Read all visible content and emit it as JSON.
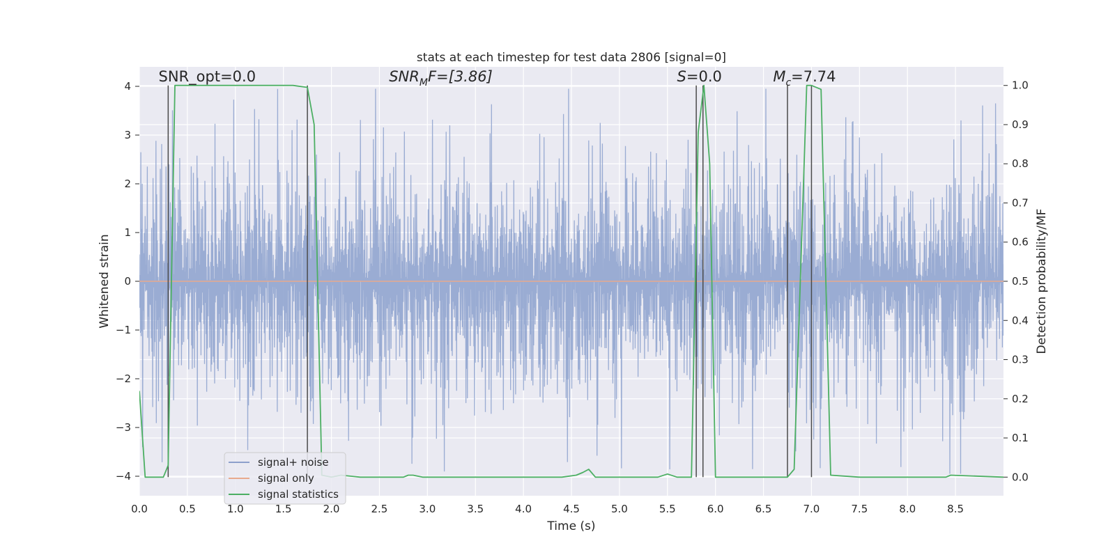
{
  "chart_data": {
    "type": "line",
    "title": "stats at each timestep for test data 2806 [signal=0]",
    "xlabel": "Time (s)",
    "ylabel": "Whitened strain",
    "y2label": "Detection probability/MF",
    "xlim": [
      0.0,
      9.0
    ],
    "ylim": [
      -4.4,
      4.4
    ],
    "y2lim": [
      -0.0475,
      1.0475
    ],
    "xticks": [
      "0.0",
      "0.5",
      "1.0",
      "1.5",
      "2.0",
      "2.5",
      "3.0",
      "3.5",
      "4.0",
      "4.5",
      "5.0",
      "5.5",
      "6.0",
      "6.5",
      "7.0",
      "7.5",
      "8.0",
      "8.5"
    ],
    "yticks": [
      "−4",
      "−3",
      "−2",
      "−1",
      "0",
      "1",
      "2",
      "3",
      "4"
    ],
    "y2ticks": [
      "0.0",
      "0.1",
      "0.2",
      "0.3",
      "0.4",
      "0.5",
      "0.6",
      "0.7",
      "0.8",
      "0.9",
      "1.0"
    ],
    "annotations": {
      "snr_opt": {
        "text": "SNR_opt=0.0",
        "x": 0.2,
        "y": 4.1
      },
      "snr_mf": {
        "prefix": "SNR",
        "sub": "M",
        "suffix": "F=[3.86]",
        "x": 2.6,
        "y": 4.1
      },
      "s": {
        "prefix": "S",
        "suffix": "=0.0",
        "x": 5.6,
        "y": 4.1
      },
      "mc": {
        "prefix": "M",
        "sub": "c",
        "suffix": "=7.74",
        "x": 6.6,
        "y": 4.1
      }
    },
    "legend": {
      "placement": "lower-left",
      "entries": [
        {
          "label": "signal+ noise",
          "color": "#8da0cb"
        },
        {
          "label": "signal only",
          "color": "#e8a98d"
        },
        {
          "label": "signal statistics",
          "color": "#4caf63"
        }
      ]
    },
    "series": [
      {
        "name": "signal+ noise",
        "axis": "left",
        "color": "#91a5cf",
        "description": "whitened strain noise, amplitude roughly within ±2 with peaks near ±4",
        "typical_amplitude": 2.1,
        "peak_amplitude": 3.95
      },
      {
        "name": "signal only",
        "axis": "left",
        "color": "#e8a98d",
        "x": [
          0.0,
          9.0
        ],
        "y": [
          0.0,
          0.0
        ]
      },
      {
        "name": "signal statistics",
        "axis": "right",
        "color": "#4caf63",
        "x": [
          0.0,
          0.06,
          0.25,
          0.3,
          0.37,
          0.45,
          1.6,
          1.75,
          1.82,
          1.9,
          2.0,
          2.1,
          2.3,
          2.75,
          2.8,
          2.85,
          2.95,
          3.5,
          4.0,
          4.4,
          4.55,
          4.62,
          4.68,
          4.75,
          5.0,
          5.4,
          5.5,
          5.6,
          5.75,
          5.82,
          5.88,
          5.94,
          6.0,
          6.5,
          6.75,
          6.82,
          6.95,
          7.0,
          7.1,
          7.2,
          7.5,
          8.0,
          8.35,
          8.4,
          8.45,
          9.0
        ],
        "y": [
          0.22,
          0.0,
          0.0,
          0.03,
          1.0,
          1.0,
          1.0,
          0.995,
          0.9,
          0.005,
          0.0,
          0.005,
          0.0,
          0.0,
          0.005,
          0.005,
          0.0,
          0.0,
          0.0,
          0.0,
          0.005,
          0.012,
          0.02,
          0.0,
          0.0,
          0.0,
          0.008,
          0.0,
          0.0,
          0.88,
          1.0,
          0.8,
          0.0,
          0.0,
          0.0,
          0.02,
          1.0,
          1.0,
          0.99,
          0.005,
          0.0,
          0.0,
          0.0,
          0.0,
          0.005,
          0.0
        ]
      }
    ],
    "vertical_lines": [
      0.3,
      1.75,
      5.8,
      5.87,
      6.75,
      7.0
    ]
  }
}
